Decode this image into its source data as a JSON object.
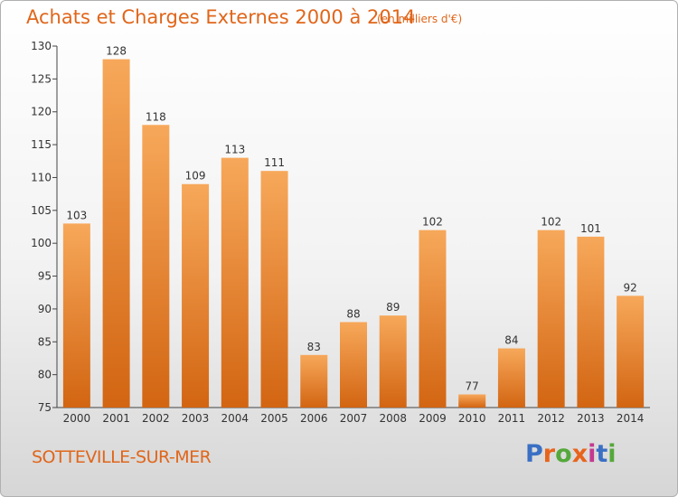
{
  "title": "Achats et Charges Externes 2000 à 2014",
  "unit_note": "(en milliers d'€)",
  "location": "SOTTEVILLE-SUR-MER",
  "logo": {
    "text": "Proxiti",
    "colors": [
      "#3a6fc4",
      "#e8641c",
      "#55a83b",
      "#e8641c",
      "#c43a8f",
      "#3a6fc4",
      "#55a83b"
    ]
  },
  "colors": {
    "accent": "#e0661a",
    "bar_top": "#f7a85a",
    "bar_bottom": "#d26512"
  },
  "chart_data": {
    "type": "bar",
    "categories": [
      "2000",
      "2001",
      "2002",
      "2003",
      "2004",
      "2005",
      "2006",
      "2007",
      "2008",
      "2009",
      "2010",
      "2011",
      "2012",
      "2013",
      "2014"
    ],
    "values": [
      103,
      128,
      118,
      109,
      113,
      111,
      83,
      88,
      89,
      102,
      77,
      84,
      102,
      101,
      92
    ],
    "ylim": [
      75,
      130
    ],
    "yticks": [
      75,
      80,
      85,
      90,
      95,
      100,
      105,
      110,
      115,
      120,
      125,
      130
    ],
    "grid": false,
    "legend": "none"
  }
}
